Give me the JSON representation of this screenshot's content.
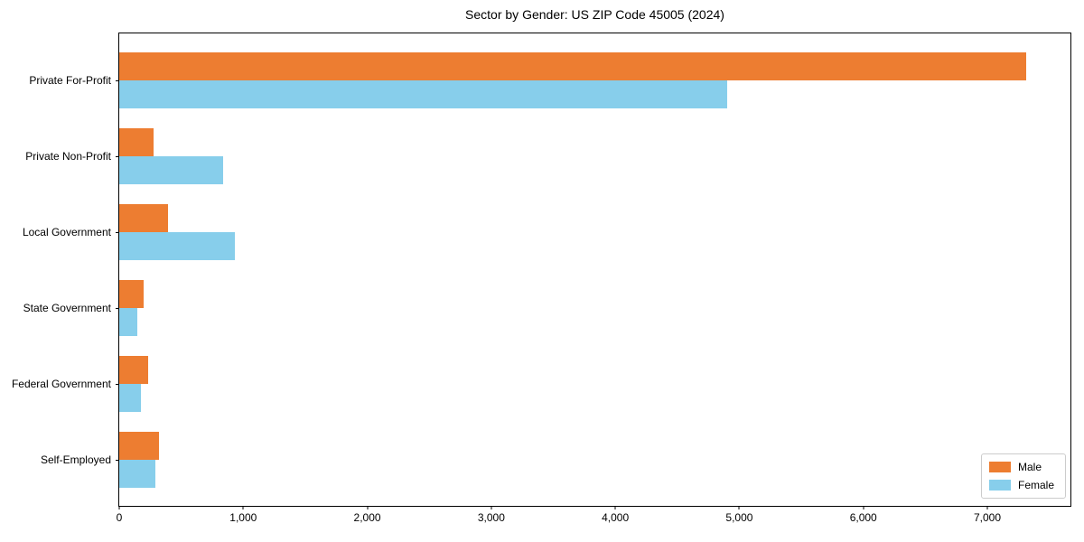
{
  "chart_data": {
    "type": "bar",
    "orientation": "horizontal",
    "title": "Sector by Gender: US ZIP Code 45005 (2024)",
    "categories": [
      "Private For-Profit",
      "Private Non-Profit",
      "Local Government",
      "State Government",
      "Federal Government",
      "Self-Employed"
    ],
    "series": [
      {
        "name": "Male",
        "color": "#ED7D31",
        "values": [
          7310,
          275,
          395,
          195,
          235,
          320
        ]
      },
      {
        "name": "Female",
        "color": "#87CEEB",
        "values": [
          4900,
          835,
          930,
          145,
          175,
          290
        ]
      }
    ],
    "xlabel": "",
    "ylabel": "",
    "xlim": [
      0,
      7670
    ],
    "x_ticks": [
      {
        "value": 0,
        "label": "0"
      },
      {
        "value": 1000,
        "label": "1,000"
      },
      {
        "value": 2000,
        "label": "2,000"
      },
      {
        "value": 3000,
        "label": "3,000"
      },
      {
        "value": 4000,
        "label": "4,000"
      },
      {
        "value": 5000,
        "label": "5,000"
      },
      {
        "value": 6000,
        "label": "6,000"
      },
      {
        "value": 7000,
        "label": "7,000"
      }
    ],
    "grid": false,
    "legend_position": "lower right"
  }
}
